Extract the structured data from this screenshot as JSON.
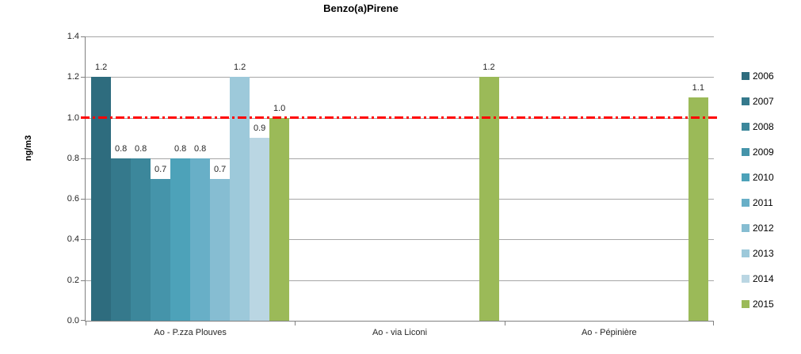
{
  "chart_data": {
    "type": "bar",
    "title": "Benzo(a)Pirene",
    "ylabel": "ng/m3",
    "ylim": [
      0,
      1.4
    ],
    "ytick_step": 0.2,
    "yticks": [
      "0.0",
      "0.2",
      "0.4",
      "0.6",
      "0.8",
      "1.0",
      "1.2",
      "1.4"
    ],
    "grid": true,
    "legend_position": "right",
    "categories": [
      "Ao - P.zza Plouves",
      "Ao - via Liconi",
      "Ao - Pépinière"
    ],
    "series": [
      {
        "name": "2006",
        "color": "#2E6C7E",
        "values": [
          1.2,
          null,
          null
        ]
      },
      {
        "name": "2007",
        "color": "#35798C",
        "values": [
          0.8,
          null,
          null
        ]
      },
      {
        "name": "2008",
        "color": "#3C879B",
        "values": [
          0.8,
          null,
          null
        ]
      },
      {
        "name": "2009",
        "color": "#4594AA",
        "values": [
          0.7,
          null,
          null
        ]
      },
      {
        "name": "2010",
        "color": "#4DA2B9",
        "values": [
          0.8,
          null,
          null
        ]
      },
      {
        "name": "2011",
        "color": "#68AFC7",
        "values": [
          0.8,
          null,
          null
        ]
      },
      {
        "name": "2012",
        "color": "#86BDD2",
        "values": [
          0.7,
          null,
          null
        ]
      },
      {
        "name": "2013",
        "color": "#9DC9DA",
        "values": [
          1.2,
          null,
          null
        ]
      },
      {
        "name": "2014",
        "color": "#BAD6E3",
        "values": [
          0.9,
          null,
          null
        ]
      },
      {
        "name": "2015",
        "color": "#9BBA58",
        "values": [
          1.0,
          1.2,
          1.1
        ]
      }
    ],
    "reference_line": {
      "value": 1.0,
      "color": "#FF0000",
      "style": "dash-dot"
    },
    "colors": {
      "gridline": "#A6A6A6",
      "axis": "#808080",
      "text": "#262626"
    }
  }
}
